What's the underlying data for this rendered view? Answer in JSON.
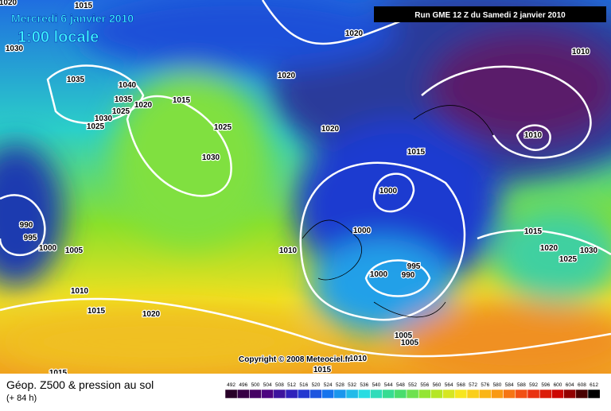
{
  "header": {
    "date": "Mercredi 6 janvier 2010",
    "time": "1:00 locale",
    "run": "Run GME 12 Z du Samedi 2 janvier 2010"
  },
  "copyright": "Copyright © 2008 Meteociel.fr",
  "footer": {
    "title": "Géop. Z500 & pression au sol",
    "lead": "(+ 84 h)"
  },
  "isobar_labels": [
    "1020",
    "1015",
    "1030",
    "1035",
    "1040",
    "1035",
    "1020",
    "1025",
    "1015",
    "1030",
    "1025",
    "1020",
    "1020",
    "1025",
    "1030",
    "1020",
    "1015",
    "1010",
    "1010",
    "1000",
    "1000",
    "990",
    "995",
    "1000",
    "1005",
    "1010",
    "1015",
    "1020",
    "1025",
    "1030",
    "995",
    "990",
    "1000",
    "1010",
    "1015",
    "1020",
    "1005",
    "1005",
    "1010",
    "1015",
    "1015"
  ],
  "scale": [
    "492",
    "496",
    "500",
    "504",
    "508",
    "512",
    "516",
    "520",
    "524",
    "528",
    "532",
    "536",
    "540",
    "544",
    "548",
    "552",
    "556",
    "560",
    "564",
    "568",
    "572",
    "576",
    "580",
    "584",
    "588",
    "592",
    "596",
    "600",
    "604",
    "608",
    "612"
  ]
}
